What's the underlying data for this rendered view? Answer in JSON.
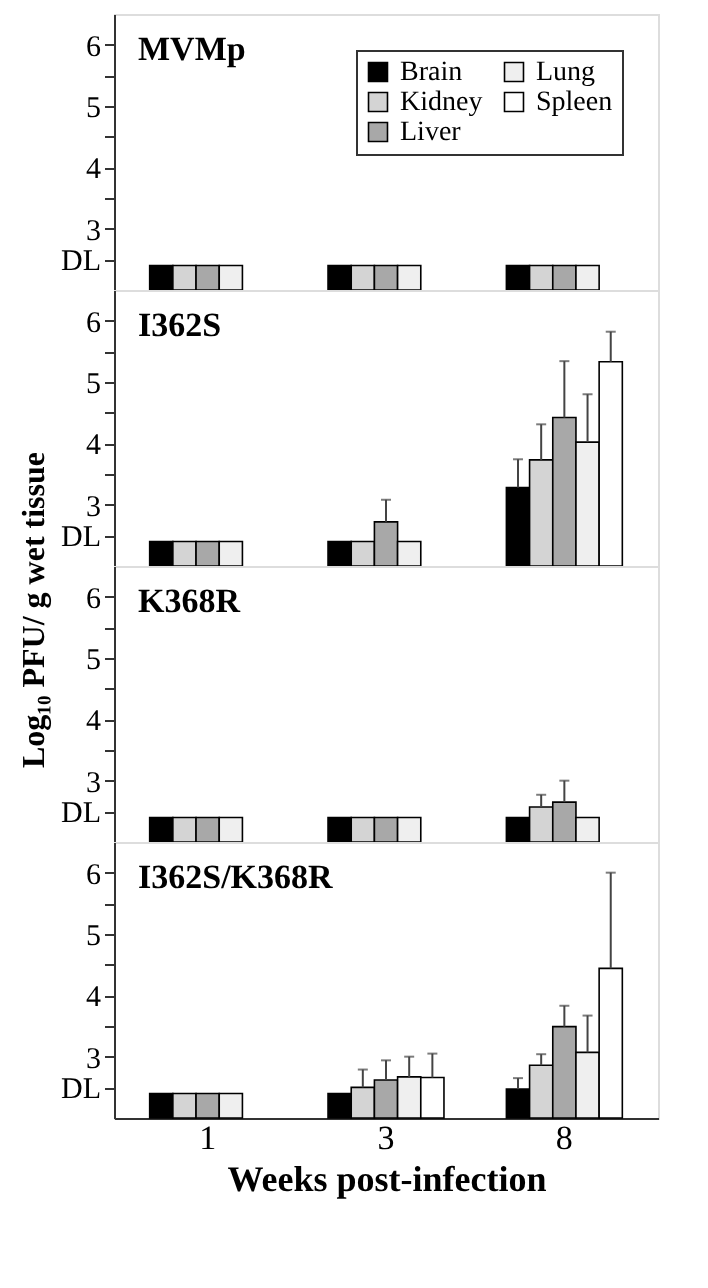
{
  "chart_data": [
    {
      "type": "bar",
      "title": "MVMp",
      "categories": [
        "1",
        "3",
        "8"
      ],
      "ylim": [
        2,
        6.5
      ],
      "yticks": [
        {
          "value": 2.5,
          "label": "DL"
        },
        3,
        {
          "value": 3.5,
          "label": null
        },
        4,
        {
          "value": 4.5,
          "label": null
        },
        5,
        {
          "value": 5.5,
          "label": null
        },
        6
      ],
      "tick_labels": "y",
      "legend": "top right",
      "grid": false,
      "series": [
        {
          "name": "Brain",
          "color": "#000000",
          "values": [
            2.4,
            2.4,
            2.4
          ]
        },
        {
          "name": "Kidney",
          "color": "#d4d4d4",
          "values": [
            2.4,
            2.4,
            2.4
          ]
        },
        {
          "name": "Liver",
          "color": "#a8a8a8",
          "values": [
            2.4,
            2.4,
            2.4
          ]
        },
        {
          "name": "Lung",
          "color": "#efefef",
          "values": [
            2.4,
            2.4,
            2.4
          ]
        },
        {
          "name": "Spleen",
          "color": "#ffffff",
          "values": [
            null,
            null,
            null
          ]
        }
      ]
    },
    {
      "type": "bar",
      "title": "I362S",
      "ylabel": "Log₁₀ PFU/ g wet tissue",
      "categories": [
        "1",
        "3",
        "8"
      ],
      "ylim": [
        2,
        6.5
      ],
      "yticks": [
        {
          "value": 2.5,
          "label": "DL"
        },
        3,
        {
          "value": 3.5,
          "label": null
        },
        4,
        {
          "value": 4.5,
          "label": null
        },
        5,
        {
          "value": 5.5,
          "label": null
        },
        6
      ],
      "tick_labels": "y",
      "grid": false,
      "series": [
        {
          "color": "#000000",
          "values": [
            2.4,
            2.4,
            3.28
          ],
          "errors": [
            null,
            null,
            [
              3.28,
              3.74
            ]
          ]
        },
        {
          "color": "#d4d4d4",
          "values": [
            2.4,
            2.4,
            3.73
          ],
          "errors": [
            null,
            null,
            [
              3.73,
              4.31
            ]
          ]
        },
        {
          "color": "#a8a8a8",
          "values": [
            2.4,
            2.72,
            4.42
          ],
          "errors": [
            null,
            [
              2.72,
              3.08
            ],
            [
              4.42,
              5.34
            ]
          ]
        },
        {
          "color": "#efefef",
          "values": [
            2.4,
            2.4,
            4.02
          ],
          "errors": [
            null,
            null,
            [
              4.02,
              4.8
            ]
          ]
        },
        {
          "color": "#ffffff",
          "values": [
            null,
            null,
            5.33
          ],
          "errors": [
            null,
            null,
            [
              5.33,
              5.82
            ]
          ]
        }
      ]
    },
    {
      "type": "bar",
      "title": "K368R",
      "categories": [
        "1",
        "3",
        "8"
      ],
      "ylim": [
        2,
        6.5
      ],
      "yticks": [
        {
          "value": 2.5,
          "label": "DL"
        },
        3,
        {
          "value": 3.5,
          "label": null
        },
        4,
        {
          "value": 4.5,
          "label": null
        },
        5,
        {
          "value": 5.5,
          "label": null
        },
        6
      ],
      "tick_labels": "y",
      "grid": false,
      "series": [
        {
          "color": "#000000",
          "values": [
            2.4,
            2.4,
            2.4
          ]
        },
        {
          "color": "#d4d4d4",
          "values": [
            2.4,
            2.4,
            2.57
          ],
          "errors": [
            null,
            null,
            [
              2.57,
              2.77
            ]
          ]
        },
        {
          "color": "#a8a8a8",
          "values": [
            2.4,
            2.4,
            2.65
          ],
          "errors": [
            null,
            null,
            [
              2.65,
              3.0
            ]
          ]
        },
        {
          "color": "#efefef",
          "values": [
            2.4,
            2.4,
            2.4
          ]
        },
        {
          "color": "#ffffff",
          "values": [
            null,
            null,
            null
          ]
        }
      ]
    },
    {
      "type": "bar",
      "title": "I362S/K368R",
      "xlabel": "Weeks post-infection",
      "categories": [
        "1",
        "3",
        "8"
      ],
      "ylim": [
        2,
        6.5
      ],
      "yticks": [
        {
          "value": 2.5,
          "label": "DL"
        },
        3,
        {
          "value": 3.5,
          "label": null
        },
        4,
        {
          "value": 4.5,
          "label": null
        },
        5,
        {
          "value": 5.5,
          "label": null
        },
        6
      ],
      "grid": false,
      "series": [
        {
          "color": "#000000",
          "values": [
            2.4,
            2.4,
            2.47
          ],
          "errors": [
            null,
            null,
            [
              2.47,
              2.65
            ]
          ]
        },
        {
          "color": "#d4d4d4",
          "values": [
            2.4,
            2.5,
            2.86
          ],
          "errors": [
            null,
            [
              2.5,
              2.79
            ],
            [
              2.86,
              3.04
            ]
          ]
        },
        {
          "color": "#a8a8a8",
          "values": [
            2.4,
            2.62,
            3.49
          ],
          "errors": [
            null,
            [
              2.62,
              2.94
            ],
            [
              3.49,
              3.83
            ]
          ]
        },
        {
          "color": "#efefef",
          "values": [
            2.4,
            2.67,
            3.07
          ],
          "errors": [
            null,
            [
              2.67,
              3.0
            ],
            [
              3.07,
              3.67
            ]
          ]
        },
        {
          "color": "#ffffff",
          "values": [
            null,
            2.66,
            4.44
          ],
          "errors": [
            null,
            [
              2.66,
              3.05
            ],
            [
              4.44,
              6.0
            ]
          ]
        }
      ]
    }
  ]
}
